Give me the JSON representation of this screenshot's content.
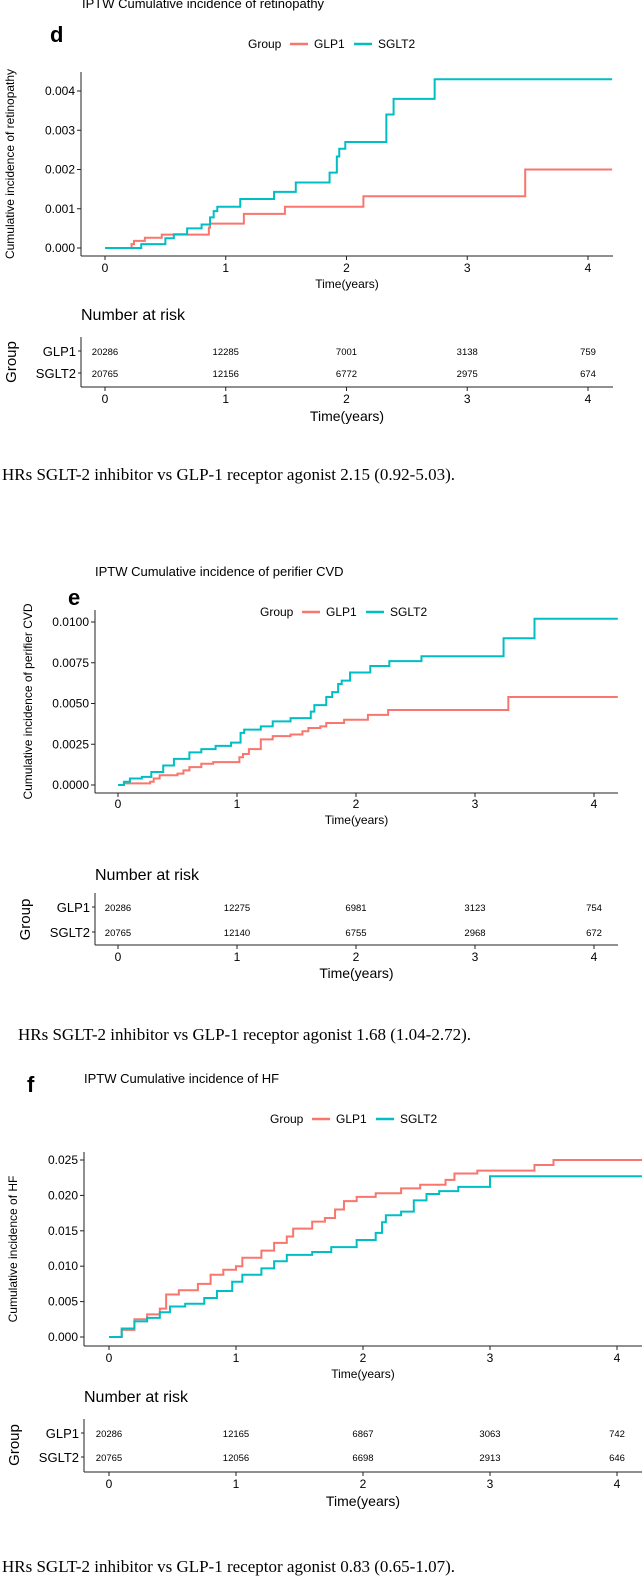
{
  "colors": {
    "GLP1": "#F8766D",
    "SGLT2": "#00BFC4",
    "axis": "#222222"
  },
  "chart_data": [
    {
      "type": "line",
      "panel_letter": "d",
      "title": "IPTW Cumulative incidence of retinopathy",
      "legend_title": "Group",
      "legend": [
        "GLP1",
        "SGLT2"
      ],
      "legend_position": "top",
      "xlabel": "Time(years)",
      "ylabel": "Cumulative incidence of retinopathy",
      "xlim": [
        0,
        4.2
      ],
      "ylim": [
        0,
        0.0045
      ],
      "xticks": [
        "0",
        "1",
        "2",
        "3",
        "4"
      ],
      "yticks": [
        "0.000",
        "0.001",
        "0.002",
        "0.003",
        "0.004"
      ],
      "ytick_values": [
        0,
        0.001,
        0.002,
        0.003,
        0.004
      ],
      "series": [
        {
          "name": "GLP1",
          "steps": [
            [
              0,
              0
            ],
            [
              0.22,
              0.0001
            ],
            [
              0.24,
              0.00018
            ],
            [
              0.33,
              0.00026
            ],
            [
              0.47,
              0.00034
            ],
            [
              0.86,
              0.00052
            ],
            [
              0.87,
              0.00062
            ],
            [
              1.15,
              0.00087
            ],
            [
              1.49,
              0.00105
            ],
            [
              2.14,
              0.00132
            ],
            [
              3.48,
              0.002
            ],
            [
              4.2,
              0.002
            ]
          ]
        },
        {
          "name": "SGLT2",
          "steps": [
            [
              0,
              0
            ],
            [
              0.3,
              0.0001
            ],
            [
              0.5,
              0.00025
            ],
            [
              0.57,
              0.00035
            ],
            [
              0.68,
              0.0005
            ],
            [
              0.8,
              0.0006
            ],
            [
              0.87,
              0.00078
            ],
            [
              0.9,
              0.00094
            ],
            [
              0.93,
              0.00105
            ],
            [
              1.12,
              0.00125
            ],
            [
              1.4,
              0.00143
            ],
            [
              1.58,
              0.00167
            ],
            [
              1.86,
              0.00192
            ],
            [
              1.92,
              0.00233
            ],
            [
              1.94,
              0.00253
            ],
            [
              1.99,
              0.0027
            ],
            [
              2.33,
              0.0034
            ],
            [
              2.39,
              0.0038
            ],
            [
              2.73,
              0.0043
            ],
            [
              4.2,
              0.0043
            ]
          ]
        }
      ],
      "risk_table": {
        "title": "Number at risk",
        "ylabel": "Group",
        "xlabel": "Time(years)",
        "rows": [
          {
            "name": "GLP1",
            "values": [
              "20286",
              "12285",
              "7001",
              "3138",
              "759"
            ]
          },
          {
            "name": "SGLT2",
            "values": [
              "20765",
              "12156",
              "6772",
              "2975",
              "674"
            ]
          }
        ]
      },
      "caption": "HRs SGLT-2 inhibitor vs GLP-1 receptor agonist 2.15 (0.92-5.03)."
    },
    {
      "type": "line",
      "panel_letter": "e",
      "title": "IPTW Cumulative incidence of perifier CVD",
      "legend_title": "Group",
      "legend": [
        "GLP1",
        "SGLT2"
      ],
      "legend_position": "top",
      "xlabel": "Time(years)",
      "ylabel": "Cumulative incidence of perifier CVD",
      "xlim": [
        0,
        4.2
      ],
      "ylim": [
        0,
        0.0105
      ],
      "xticks": [
        "0",
        "1",
        "2",
        "3",
        "4"
      ],
      "yticks": [
        "0.0000",
        "0.0025",
        "0.0050",
        "0.0075",
        "0.0100"
      ],
      "ytick_values": [
        0,
        0.0025,
        0.005,
        0.0075,
        0.01
      ],
      "series": [
        {
          "name": "GLP1",
          "steps": [
            [
              0,
              0
            ],
            [
              0.05,
              0.0001
            ],
            [
              0.27,
              0.0002
            ],
            [
              0.3,
              0.0004
            ],
            [
              0.35,
              0.0006
            ],
            [
              0.5,
              0.0007
            ],
            [
              0.55,
              0.0009
            ],
            [
              0.6,
              0.0011
            ],
            [
              0.7,
              0.0013
            ],
            [
              0.8,
              0.0014
            ],
            [
              1.02,
              0.0017
            ],
            [
              1.05,
              0.0019
            ],
            [
              1.1,
              0.0022
            ],
            [
              1.2,
              0.0028
            ],
            [
              1.3,
              0.003
            ],
            [
              1.45,
              0.0031
            ],
            [
              1.55,
              0.0033
            ],
            [
              1.6,
              0.0035
            ],
            [
              1.7,
              0.0036
            ],
            [
              1.75,
              0.0038
            ],
            [
              1.9,
              0.004
            ],
            [
              2.1,
              0.0043
            ],
            [
              2.27,
              0.0046
            ],
            [
              3.28,
              0.0054
            ],
            [
              4.2,
              0.0054
            ]
          ]
        },
        {
          "name": "SGLT2",
          "steps": [
            [
              0,
              0
            ],
            [
              0.05,
              0.0002
            ],
            [
              0.1,
              0.0004
            ],
            [
              0.2,
              0.0005
            ],
            [
              0.28,
              0.0008
            ],
            [
              0.38,
              0.0012
            ],
            [
              0.47,
              0.0016
            ],
            [
              0.6,
              0.002
            ],
            [
              0.7,
              0.0022
            ],
            [
              0.82,
              0.0024
            ],
            [
              0.95,
              0.0026
            ],
            [
              1.03,
              0.0032
            ],
            [
              1.06,
              0.0034
            ],
            [
              1.2,
              0.0036
            ],
            [
              1.3,
              0.0039
            ],
            [
              1.45,
              0.0041
            ],
            [
              1.62,
              0.0045
            ],
            [
              1.65,
              0.0049
            ],
            [
              1.75,
              0.0054
            ],
            [
              1.8,
              0.0057
            ],
            [
              1.85,
              0.0062
            ],
            [
              1.88,
              0.0064
            ],
            [
              1.95,
              0.0069
            ],
            [
              2.12,
              0.0073
            ],
            [
              2.28,
              0.0076
            ],
            [
              2.55,
              0.0079
            ],
            [
              3.24,
              0.009
            ],
            [
              3.5,
              0.0102
            ],
            [
              4.2,
              0.0102
            ]
          ]
        }
      ],
      "risk_table": {
        "title": "Number at risk",
        "ylabel": "Group",
        "xlabel": "Time(years)",
        "rows": [
          {
            "name": "GLP1",
            "values": [
              "20286",
              "12275",
              "6981",
              "3123",
              "754"
            ]
          },
          {
            "name": "SGLT2",
            "values": [
              "20765",
              "12140",
              "6755",
              "2968",
              "672"
            ]
          }
        ]
      },
      "caption": "HRs SGLT-2 inhibitor vs GLP-1 receptor agonist 1.68 (1.04-2.72)."
    },
    {
      "type": "line",
      "panel_letter": "f",
      "title": "IPTW Cumulative incidence of HF",
      "legend_title": "Group",
      "legend": [
        "GLP1",
        "SGLT2"
      ],
      "legend_position": "top",
      "xlabel": "Time(years)",
      "ylabel": "Cumulative incidence of HF",
      "xlim": [
        0,
        4.2
      ],
      "ylim": [
        0,
        0.026
      ],
      "xticks": [
        "0",
        "1",
        "2",
        "3",
        "4"
      ],
      "yticks": [
        "0.000",
        "0.005",
        "0.010",
        "0.015",
        "0.020",
        "0.025"
      ],
      "ytick_values": [
        0,
        0.005,
        0.01,
        0.015,
        0.02,
        0.025
      ],
      "series": [
        {
          "name": "GLP1",
          "steps": [
            [
              0,
              0
            ],
            [
              0.1,
              0.001
            ],
            [
              0.2,
              0.0025
            ],
            [
              0.3,
              0.0032
            ],
            [
              0.4,
              0.004
            ],
            [
              0.45,
              0.006
            ],
            [
              0.55,
              0.0066
            ],
            [
              0.7,
              0.0075
            ],
            [
              0.8,
              0.0088
            ],
            [
              0.9,
              0.0095
            ],
            [
              1,
              0.01
            ],
            [
              1.05,
              0.0112
            ],
            [
              1.2,
              0.0122
            ],
            [
              1.3,
              0.0133
            ],
            [
              1.4,
              0.0142
            ],
            [
              1.45,
              0.0153
            ],
            [
              1.6,
              0.0163
            ],
            [
              1.7,
              0.0168
            ],
            [
              1.78,
              0.018
            ],
            [
              1.85,
              0.0192
            ],
            [
              1.95,
              0.0198
            ],
            [
              2.1,
              0.0203
            ],
            [
              2.3,
              0.021
            ],
            [
              2.45,
              0.0215
            ],
            [
              2.65,
              0.0222
            ],
            [
              2.72,
              0.0231
            ],
            [
              2.9,
              0.0235
            ],
            [
              3.35,
              0.0243
            ],
            [
              3.5,
              0.025
            ],
            [
              4.2,
              0.025
            ]
          ]
        },
        {
          "name": "SGLT2",
          "steps": [
            [
              0,
              0
            ],
            [
              0.1,
              0.0012
            ],
            [
              0.2,
              0.0022
            ],
            [
              0.3,
              0.0027
            ],
            [
              0.4,
              0.0035
            ],
            [
              0.48,
              0.0043
            ],
            [
              0.6,
              0.0047
            ],
            [
              0.75,
              0.0055
            ],
            [
              0.85,
              0.0065
            ],
            [
              0.97,
              0.0078
            ],
            [
              1.05,
              0.0088
            ],
            [
              1.2,
              0.0097
            ],
            [
              1.3,
              0.0107
            ],
            [
              1.4,
              0.0116
            ],
            [
              1.6,
              0.012
            ],
            [
              1.75,
              0.0127
            ],
            [
              1.95,
              0.0137
            ],
            [
              2.1,
              0.0147
            ],
            [
              2.15,
              0.0162
            ],
            [
              2.18,
              0.0172
            ],
            [
              2.3,
              0.0177
            ],
            [
              2.4,
              0.0193
            ],
            [
              2.5,
              0.0202
            ],
            [
              2.6,
              0.0206
            ],
            [
              2.75,
              0.0212
            ],
            [
              3.0,
              0.0227
            ],
            [
              4.2,
              0.0227
            ]
          ]
        }
      ],
      "risk_table": {
        "title": "Number at risk",
        "ylabel": "Group",
        "xlabel": "Time(years)",
        "rows": [
          {
            "name": "GLP1",
            "values": [
              "20286",
              "12165",
              "6867",
              "3063",
              "742"
            ]
          },
          {
            "name": "SGLT2",
            "values": [
              "20765",
              "12056",
              "6698",
              "2913",
              "646"
            ]
          }
        ]
      },
      "caption": "HRs SGLT-2 inhibitor vs GLP-1 receptor agonist 0.83 (0.65-1.07)."
    }
  ]
}
